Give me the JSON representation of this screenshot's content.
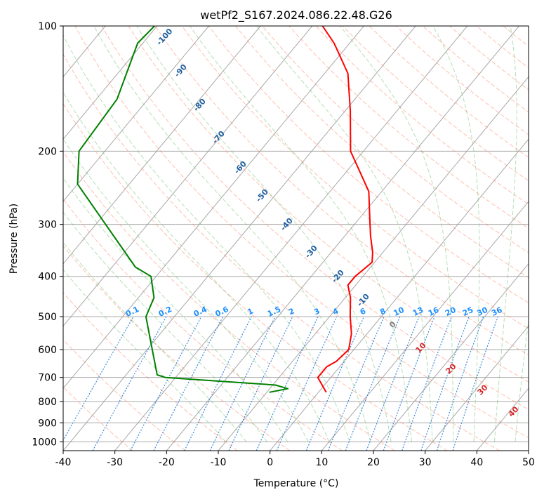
{
  "chart_data": {
    "type": "line",
    "title": "wetPf2_S167.2024.086.22.48.G26",
    "xlabel": "Temperature (°C)",
    "ylabel": "Pressure (hPa)",
    "xlim": [
      -40,
      50
    ],
    "ylim": [
      1050,
      100
    ],
    "y_scale": "log",
    "skew": "skew-T log-p (isotherms skewed 45°)",
    "grid": true,
    "x_ticks": [
      -40,
      -30,
      -20,
      -10,
      0,
      10,
      20,
      30,
      40,
      50
    ],
    "y_ticks": [
      100,
      200,
      300,
      400,
      500,
      600,
      700,
      800,
      900,
      1000
    ],
    "series": [
      {
        "color": "#ff0000",
        "values": [
          {
            "p": 760,
            "t": 1.5
          },
          {
            "p": 700,
            "t": -2.5
          },
          {
            "p": 660,
            "t": -2.5
          },
          {
            "p": 640,
            "t": -1.5
          },
          {
            "p": 600,
            "t": -1.0
          },
          {
            "p": 550,
            "t": -3.0
          },
          {
            "p": 500,
            "t": -6.0
          },
          {
            "p": 450,
            "t": -9.0
          },
          {
            "p": 420,
            "t": -11.5
          },
          {
            "p": 400,
            "t": -11.5
          },
          {
            "p": 370,
            "t": -10.5
          },
          {
            "p": 350,
            "t": -12.0
          },
          {
            "p": 320,
            "t": -15.0
          },
          {
            "p": 290,
            "t": -18.0
          },
          {
            "p": 250,
            "t": -22.5
          },
          {
            "p": 200,
            "t": -32.5
          },
          {
            "p": 160,
            "t": -39.0
          },
          {
            "p": 130,
            "t": -45.5
          },
          {
            "p": 110,
            "t": -53.0
          },
          {
            "p": 100,
            "t": -58.0
          }
        ]
      },
      {
        "color": "#008000",
        "values": [
          {
            "p": 760,
            "t": -9.5
          },
          {
            "p": 745,
            "t": -6.5
          },
          {
            "p": 730,
            "t": -9.5
          },
          {
            "p": 700,
            "t": -32.0
          },
          {
            "p": 690,
            "t": -34.0
          },
          {
            "p": 600,
            "t": -39.0
          },
          {
            "p": 500,
            "t": -45.5
          },
          {
            "p": 450,
            "t": -47.0
          },
          {
            "p": 400,
            "t": -51.0
          },
          {
            "p": 380,
            "t": -55.5
          },
          {
            "p": 240,
            "t": -80.0
          },
          {
            "p": 200,
            "t": -85.0
          },
          {
            "p": 150,
            "t": -86.0
          },
          {
            "p": 110,
            "t": -91.0
          },
          {
            "p": 100,
            "t": -90.5
          }
        ]
      }
    ],
    "isotherms_c": [
      -150,
      -140,
      -130,
      -120,
      -110,
      -100,
      -90,
      -80,
      -70,
      -60,
      -50,
      -40,
      -30,
      -20,
      -10,
      0,
      10,
      20,
      30,
      40,
      50
    ],
    "dry_adiabat_labels": [
      {
        "text": "-100",
        "t": -100
      },
      {
        "text": "-90",
        "t": -90
      },
      {
        "text": "-80",
        "t": -80
      },
      {
        "text": "-70",
        "t": -70
      },
      {
        "text": "-60",
        "t": -60
      },
      {
        "text": "-50",
        "t": -50
      },
      {
        "text": "-40",
        "t": -40
      },
      {
        "text": "-30",
        "t": -30
      },
      {
        "text": "-20",
        "t": -20
      },
      {
        "text": "-10",
        "t": -10
      }
    ],
    "mixing_ratio_labels": [
      "0.1",
      "0.2",
      "0.4",
      "0.6",
      "1",
      "1.5",
      "2",
      "3",
      "4",
      "6",
      "8",
      "10",
      "13",
      "16",
      "20",
      "25",
      "30",
      "36"
    ],
    "moist_adiabat_labels": [
      "0",
      "10",
      "20",
      "30",
      "40"
    ],
    "colors": {
      "temperature": "#ff0000",
      "dewpoint": "#008000",
      "dry_adiabat": "#ff8060",
      "moist_adiabat": "#5cb85c",
      "mixing_ratio": "#1f77d4",
      "isotherm": "#999999",
      "dry_label": "#1f5f9f",
      "mixing_label": "#1e90ff",
      "moist_label": "#d62728",
      "moist_zero_label": "#808080"
    }
  }
}
